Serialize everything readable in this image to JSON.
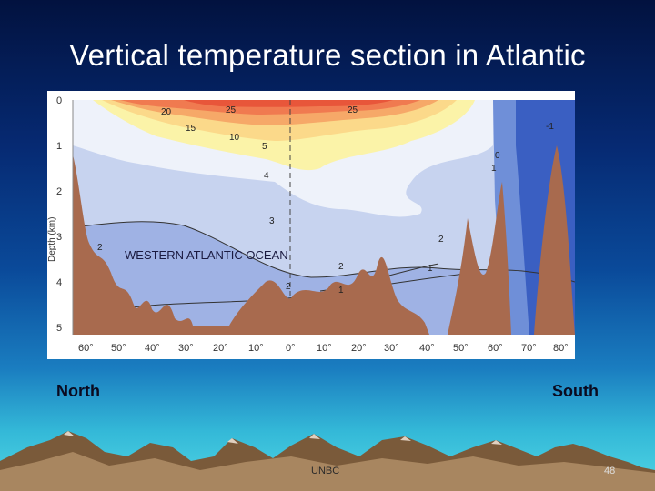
{
  "slide": {
    "title": "Vertical temperature section in Atlantic",
    "north_label": "North",
    "south_label": "South",
    "footer_text": "UNBC",
    "page_number": "48"
  },
  "figure": {
    "y_axis_label": "Depth (km)",
    "depth_ticks": [
      "0",
      "1",
      "2",
      "3",
      "4",
      "5"
    ],
    "latitude_ticks": [
      "60°",
      "50°",
      "40°",
      "30°",
      "20°",
      "10°",
      "0°",
      "10°",
      "20°",
      "30°",
      "40°",
      "50°",
      "60°",
      "70°",
      "80°"
    ],
    "ocean_label": "WESTERN ATLANTIC OCEAN",
    "isotherm_labels": [
      "25",
      "25",
      "20",
      "15",
      "10",
      "5",
      "4",
      "3",
      "2",
      "2",
      "2",
      "2",
      "1",
      "1",
      "1",
      "0",
      "-1"
    ],
    "colors": {
      "warm_25": "#e8563a",
      "warm_20": "#f07a50",
      "warm_15": "#f6a868",
      "warm_10": "#fbd98a",
      "warm_5": "#fbf3a8",
      "temp_4": "#eef2fa",
      "temp_3": "#c7d3ef",
      "temp_2": "#9fb2e4",
      "temp_1": "#6f8fd8",
      "cold": "#3a5fc2",
      "seafloor": "#a86a4e",
      "frame_bg": "#ffffff"
    }
  }
}
